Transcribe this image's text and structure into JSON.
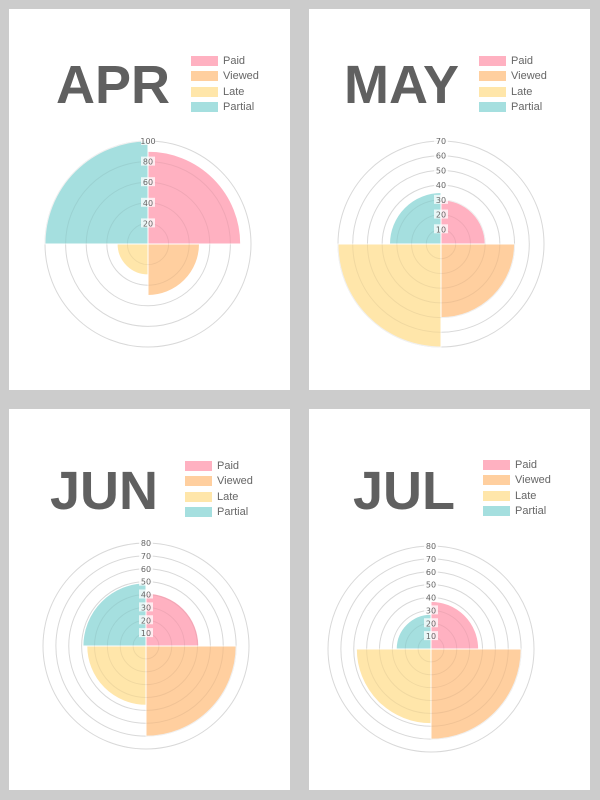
{
  "colors": {
    "Paid": "#ffb1c1",
    "Viewed": "#ffcf9f",
    "Late": "#ffe6aa",
    "Partial": "#a5dfdf"
  },
  "chart_data": [
    {
      "type": "polarArea",
      "title": "APR",
      "categories": [
        "Paid",
        "Viewed",
        "Late",
        "Partial"
      ],
      "values": [
        90,
        50,
        30,
        100
      ],
      "rlim": [
        0,
        100
      ],
      "ticks": [
        "20",
        "40",
        "60",
        "80",
        "100"
      ],
      "legend": "top-right",
      "grid": true
    },
    {
      "type": "polarArea",
      "title": "MAY",
      "categories": [
        "Paid",
        "Viewed",
        "Late",
        "Partial"
      ],
      "values": [
        30,
        50,
        70,
        35
      ],
      "rlim": [
        0,
        70
      ],
      "ticks": [
        "10",
        "20",
        "30",
        "40",
        "50",
        "60",
        "70"
      ],
      "legend": "top-right",
      "grid": true
    },
    {
      "type": "polarArea",
      "title": "JUN",
      "categories": [
        "Paid",
        "Viewed",
        "Late",
        "Partial"
      ],
      "values": [
        41,
        70,
        46,
        49
      ],
      "rlim": [
        0,
        80
      ],
      "ticks": [
        "10",
        "20",
        "30",
        "40",
        "50",
        "60",
        "70",
        "80"
      ],
      "legend": "top-right",
      "grid": true
    },
    {
      "type": "polarArea",
      "title": "JUL",
      "categories": [
        "Paid",
        "Viewed",
        "Late",
        "Partial"
      ],
      "values": [
        37,
        70,
        58,
        27
      ],
      "rlim": [
        0,
        80
      ],
      "ticks": [
        "10",
        "20",
        "30",
        "40",
        "50",
        "60",
        "70",
        "80"
      ],
      "legend": "top-right",
      "grid": true
    }
  ]
}
